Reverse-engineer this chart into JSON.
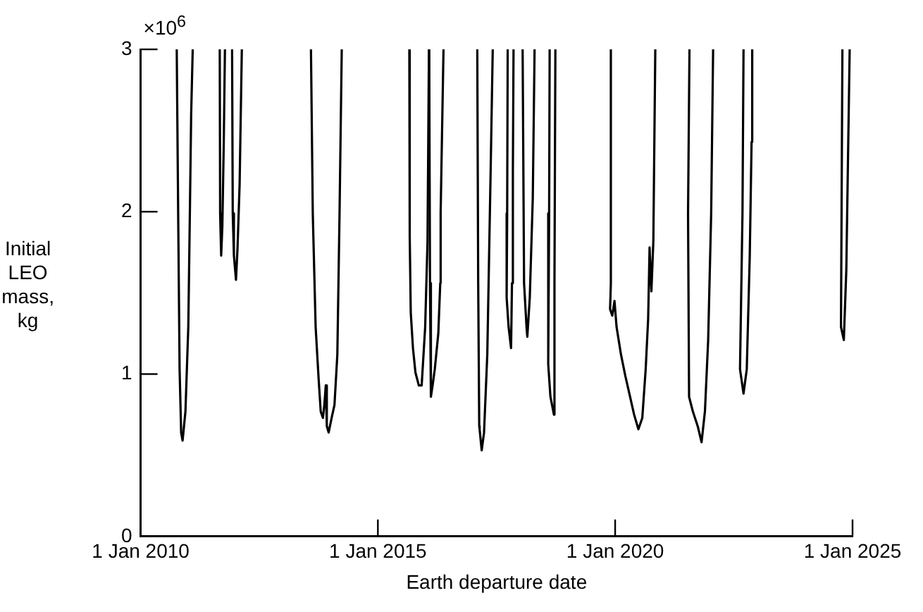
{
  "chart_data": {
    "type": "line",
    "xlabel": "Earth departure date",
    "ylabel": "Initial LEO mass, kg",
    "annotations": [
      "×10$^{6}$"
    ],
    "xlim": [
      "2010-01-01",
      "2025-01-01"
    ],
    "xticks": [
      {
        "value": "2010-01-01",
        "label": "1 Jan 2010"
      },
      {
        "value": "2015-01-01",
        "label": "1 Jan 2015"
      },
      {
        "value": "2020-01-01",
        "label": "1 Jan 2020"
      },
      {
        "value": "2025-01-01",
        "label": "1 Jan 2025"
      }
    ],
    "ylim": [
      0,
      3
    ],
    "yticks": [
      0,
      1,
      2,
      3
    ],
    "marker": "none",
    "legend": false,
    "series": [
      {
        "color": "#000000",
        "x": [
          "2010-10-06",
          "2010-10-17",
          "2010-10-28",
          "2010-11-09",
          "2010-11-20",
          "2010-12-12",
          "2011-01-03",
          "2011-01-15",
          "2011-01-25",
          "2011-02-06"
        ],
        "values": [
          3.0,
          1.99,
          1.03,
          0.64,
          0.59,
          0.77,
          1.29,
          1.99,
          2.6,
          3.0
        ]
      },
      {
        "color": "#000000",
        "x": [
          "2011-09-02",
          "2011-09-05",
          "2011-09-13",
          "2011-09-22",
          "2011-10-03",
          "2011-10-12"
        ],
        "values": [
          3.0,
          1.99,
          1.73,
          1.91,
          2.43,
          3.0
        ]
      },
      {
        "color": "#000000",
        "x": [
          "2011-12-06",
          "2011-12-11",
          "2011-12-20",
          "2012-01-05",
          "2012-01-17",
          "2012-02-02",
          "2012-02-19"
        ],
        "values": [
          3.0,
          1.99,
          1.73,
          1.58,
          1.78,
          2.17,
          3.0
        ]
      },
      {
        "color": "#000000",
        "x": [
          "2013-08-04",
          "2013-08-18",
          "2013-09-09",
          "2013-10-02",
          "2013-10-18",
          "2013-11-04",
          "2013-11-15",
          "2013-11-26",
          "2013-12-04",
          "2013-12-18",
          "2014-01-10",
          "2014-02-01",
          "2014-02-23",
          "2014-03-12",
          "2014-03-29"
        ],
        "values": [
          3.0,
          1.99,
          1.29,
          0.97,
          0.77,
          0.73,
          0.81,
          0.93,
          0.68,
          0.64,
          0.73,
          0.81,
          1.12,
          1.99,
          3.0
        ]
      },
      {
        "color": "#000000",
        "x": [
          "2015-08-31",
          "2015-09-03",
          "2015-09-11",
          "2015-09-28",
          "2015-10-17",
          "2015-11-12",
          "2015-12-04",
          "2015-12-31",
          "2016-01-18",
          "2016-01-29"
        ],
        "values": [
          3.0,
          1.85,
          1.38,
          1.16,
          1.01,
          0.93,
          0.93,
          1.29,
          1.82,
          3.0
        ]
      },
      {
        "color": "#000000",
        "x": [
          "2016-01-31",
          "2016-02-06",
          "2016-02-13",
          "2016-02-28",
          "2016-03-14",
          "2016-04-10",
          "2016-04-25",
          "2016-04-28",
          "2016-05-20"
        ],
        "values": [
          3.0,
          1.56,
          0.86,
          0.94,
          1.03,
          1.25,
          1.56,
          1.99,
          3.0
        ]
      },
      {
        "color": "#000000",
        "x": [
          "2017-02-04",
          "2017-02-11",
          "2017-02-19",
          "2017-02-22",
          "2017-03-10",
          "2017-03-28",
          "2017-04-22",
          "2017-05-18",
          "2017-06-03"
        ],
        "values": [
          3.0,
          1.56,
          0.68,
          0.66,
          0.53,
          0.64,
          1.12,
          2.26,
          3.0
        ]
      },
      {
        "color": "#000000",
        "x": [
          "2017-09-26",
          "2017-09-22",
          "2017-09-18",
          "2017-10-03",
          "2017-10-22",
          "2017-10-29",
          "2017-11-05",
          "2017-11-10"
        ],
        "values": [
          3.0,
          1.99,
          1.47,
          1.29,
          1.16,
          1.56,
          2.26,
          3.0
        ]
      },
      {
        "color": "#000000",
        "x": [
          "2018-01-19",
          "2018-01-30",
          "2018-02-18",
          "2018-02-24",
          "2018-03-15",
          "2018-04-07",
          "2018-04-21"
        ],
        "values": [
          3.0,
          1.56,
          1.29,
          1.23,
          1.47,
          2.08,
          3.0
        ]
      },
      {
        "color": "#000000",
        "x": [
          "2018-08-15",
          "2018-08-11",
          "2018-08-04",
          "2018-08-21",
          "2018-09-17",
          "2018-09-21",
          "2018-09-28"
        ],
        "values": [
          3.0,
          1.99,
          1.06,
          0.86,
          0.75,
          1.56,
          3.0
        ]
      },
      {
        "color": "#000000",
        "x": [
          "2019-11-29",
          "2019-11-29",
          "2019-11-23",
          "2019-12-10",
          "2019-12-27",
          "2020-01-12",
          "2020-02-15",
          "2020-03-19",
          "2020-04-22",
          "2020-05-26",
          "2020-06-28",
          "2020-07-28",
          "2020-08-23",
          "2020-09-11",
          "2020-09-22",
          "2020-10-06",
          "2020-10-21",
          "2020-11-05"
        ],
        "values": [
          3.0,
          1.56,
          1.4,
          1.36,
          1.45,
          1.29,
          1.12,
          0.99,
          0.87,
          0.75,
          0.66,
          0.73,
          1.03,
          1.34,
          1.78,
          1.51,
          1.82,
          3.0
        ]
      },
      {
        "color": "#000000",
        "x": [
          "2021-07-26",
          "2021-07-15",
          "2021-07-23",
          "2021-08-21",
          "2021-09-27",
          "2021-10-27",
          "2021-11-22",
          "2021-12-17",
          "2022-01-09",
          "2022-01-24"
        ],
        "values": [
          3.0,
          1.99,
          0.86,
          0.77,
          0.68,
          0.58,
          0.77,
          1.21,
          1.99,
          3.0
        ]
      },
      {
        "color": "#000000",
        "x": [
          "2022-09-15",
          "2022-09-07",
          "2022-08-19",
          "2022-09-15",
          "2022-10-10",
          "2022-11-02",
          "2022-11-16",
          "2022-11-21"
        ],
        "values": [
          3.0,
          1.99,
          1.03,
          0.88,
          1.03,
          1.73,
          2.43,
          3.0
        ]
      },
      {
        "color": "#000000",
        "x": [
          "2024-10-15",
          "2024-10-04",
          "2024-10-26",
          "2024-11-14",
          "2024-12-10"
        ],
        "values": [
          3.0,
          1.29,
          1.21,
          1.64,
          3.0
        ]
      }
    ]
  }
}
